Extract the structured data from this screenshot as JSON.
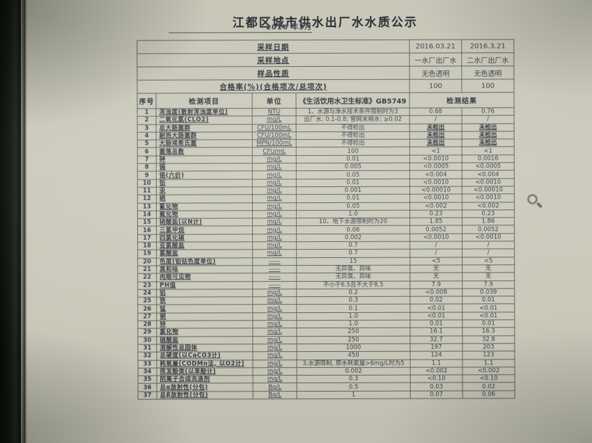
{
  "page": {
    "title": "江都区城市供水出厂水水质公示",
    "subtitle": "2016 年3月"
  },
  "screen": {
    "cursor_icon": "zoom-magnifier"
  },
  "colors": {
    "screen_bg": "#c9c8b9",
    "ink": "#3a3d49",
    "table_border": "#5c6059",
    "bezel": "#101510"
  },
  "table": {
    "meta_rows": [
      {
        "label": "采样日期",
        "v1": "2016.03.21",
        "v2": "2016.3.21"
      },
      {
        "label": "采样地点",
        "v1": "一水厂出厂水",
        "v2": "二水厂出厂水"
      },
      {
        "label": "样品性质",
        "v1": "无色透明",
        "v2": "无色透明"
      },
      {
        "label": "合格率(%)(合格项次/总项次)",
        "v1": "100",
        "v2": "100"
      }
    ],
    "columns": {
      "no": "序号",
      "item": "检测项目",
      "unit": "单位",
      "standard": "《生活饮用水卫生标准》GB5749",
      "result": "检测结果"
    },
    "rows": [
      {
        "no": "1",
        "item": "浑浊度(散射浑浊度单位)",
        "unit": "NTU",
        "standard": "1、水源与净水技术条件限制时为3",
        "result1": "0.68",
        "result2": "0.76"
      },
      {
        "no": "2",
        "item": "二氧化氯(CLO2)",
        "unit": "mg/L",
        "standard": "出厂水: 0.1-0.8; 管网末梢水: ≥0.02",
        "result1": "/",
        "result2": "/"
      },
      {
        "no": "3",
        "item": "总大肠菌群",
        "unit": "CFU/100mL",
        "standard": "不得检出",
        "result1": "未检出",
        "result2": "未检出"
      },
      {
        "no": "4",
        "item": "耐热大肠菌群",
        "unit": "CFU/100mL",
        "standard": "不得检出",
        "result1": "未检出",
        "result2": "未检出"
      },
      {
        "no": "5",
        "item": "大肠埃希氏菌",
        "unit": "MPN/100mL",
        "standard": "不得检出",
        "result1": "未检出",
        "result2": "未检出"
      },
      {
        "no": "6",
        "item": "菌落总数",
        "unit": "CFU/mL",
        "standard": "100",
        "result1": "<1",
        "result2": "<1"
      },
      {
        "no": "7",
        "item": "砷",
        "unit": "mg/L",
        "standard": "0.01",
        "result1": "<0.0010",
        "result2": "0.0016"
      },
      {
        "no": "8",
        "item": "镉",
        "unit": "mg/L",
        "standard": "0.005",
        "result1": "<0.0005",
        "result2": "<0.0005"
      },
      {
        "no": "9",
        "item": "铬(六价)",
        "unit": "mg/L",
        "standard": "0.05",
        "result1": "<0.004",
        "result2": "<0.004"
      },
      {
        "no": "10",
        "item": "铅",
        "unit": "mg/L",
        "standard": "0.01",
        "result1": "<0.0010",
        "result2": "<0.0010"
      },
      {
        "no": "11",
        "item": "汞",
        "unit": "mg/L",
        "standard": "0.001",
        "result1": "<0.00010",
        "result2": "<0.00010"
      },
      {
        "no": "12",
        "item": "硒",
        "unit": "mg/L",
        "standard": "0.01",
        "result1": "<0.0010",
        "result2": "<0.0010"
      },
      {
        "no": "13",
        "item": "氰化物",
        "unit": "mg/L",
        "standard": "0.05",
        "result1": "<0.002",
        "result2": "<0.002"
      },
      {
        "no": "14",
        "item": "氟化物",
        "unit": "mg/L",
        "standard": "1.0",
        "result1": "0.23",
        "result2": "0.23"
      },
      {
        "no": "15",
        "item": "硝酸盐(以N计)",
        "unit": "mg/L",
        "standard": "10、地下水源限制时为20",
        "result1": "1.85",
        "result2": "1.86"
      },
      {
        "no": "16",
        "item": "三氯甲烷",
        "unit": "mg/L",
        "standard": "0.06",
        "result1": "0.0052",
        "result2": "0.0052"
      },
      {
        "no": "17",
        "item": "四氯化碳",
        "unit": "mg/L",
        "standard": "0.002",
        "result1": "<0.0010",
        "result2": "<0.0010"
      },
      {
        "no": "18",
        "item": "亚氯酸盐",
        "unit": "mg/L",
        "standard": "0.7",
        "result1": "/",
        "result2": "/"
      },
      {
        "no": "19",
        "item": "氯酸盐",
        "unit": "mg/L",
        "standard": "0.7",
        "result1": "/",
        "result2": "/"
      },
      {
        "no": "20",
        "item": "色度(铂钴色度单位)",
        "unit": "——",
        "standard": "15",
        "result1": "<5",
        "result2": "<5"
      },
      {
        "no": "21",
        "item": "臭和味",
        "unit": "——",
        "standard": "无异臭、异味",
        "result1": "无",
        "result2": "无"
      },
      {
        "no": "22",
        "item": "肉眼可见物",
        "unit": "——",
        "standard": "无异臭、异味",
        "result1": "无",
        "result2": "无"
      },
      {
        "no": "23",
        "item": "PH值",
        "unit": "——",
        "standard": "不小于6.5且不大于8.5",
        "result1": "7.9",
        "result2": "7.9"
      },
      {
        "no": "24",
        "item": "铝",
        "unit": "mg/L",
        "standard": "0.2",
        "result1": "<0.008",
        "result2": "0.039"
      },
      {
        "no": "25",
        "item": "铁",
        "unit": "mg/L",
        "standard": "0.3",
        "result1": "0.02",
        "result2": "0.01"
      },
      {
        "no": "26",
        "item": "锰",
        "unit": "mg/L",
        "standard": "0.1",
        "result1": "<0.01",
        "result2": "<0.01"
      },
      {
        "no": "27",
        "item": "铜",
        "unit": "mg/L",
        "standard": "1.0",
        "result1": "<0.01",
        "result2": "<0.01"
      },
      {
        "no": "28",
        "item": "锌",
        "unit": "mg/L",
        "standard": "1.0",
        "result1": "0.01",
        "result2": "0.01"
      },
      {
        "no": "29",
        "item": "氯化物",
        "unit": "mg/L",
        "standard": "250",
        "result1": "16.1",
        "result2": "16.3"
      },
      {
        "no": "30",
        "item": "硫酸盐",
        "unit": "mg/L",
        "standard": "250",
        "result1": "32.7",
        "result2": "32.8"
      },
      {
        "no": "31",
        "item": "溶解性总固体",
        "unit": "mg/L",
        "standard": "1000",
        "result1": "197",
        "result2": "203"
      },
      {
        "no": "32",
        "item": "总硬度(以CaCO3计)",
        "unit": "mg/L",
        "standard": "450",
        "result1": "124",
        "result2": "123"
      },
      {
        "no": "33",
        "item": "耗氧量(CODMn法, 以O2计)",
        "unit": "mg/L",
        "standard": "3,水源限制, 原水耗氧量>6mg/L时为5",
        "result1": "1.1",
        "result2": "1.1"
      },
      {
        "no": "34",
        "item": "挥发酚类(以苯酚计)",
        "unit": "mg/L",
        "standard": "0.002",
        "result1": "<0.002",
        "result2": "<0.002"
      },
      {
        "no": "35",
        "item": "阴离子合成洗涤剂",
        "unit": "mg/L",
        "standard": "0.3",
        "result1": "<0.10",
        "result2": "<0.10"
      },
      {
        "no": "36",
        "item": "总α放射性(分包)",
        "unit": "Bq/L",
        "standard": "0.5",
        "result1": "0.03",
        "result2": "0.02"
      },
      {
        "no": "37",
        "item": "总β放射性(分包)",
        "unit": "Bq/L",
        "standard": "1",
        "result1": "0.07",
        "result2": "0.06"
      }
    ]
  }
}
